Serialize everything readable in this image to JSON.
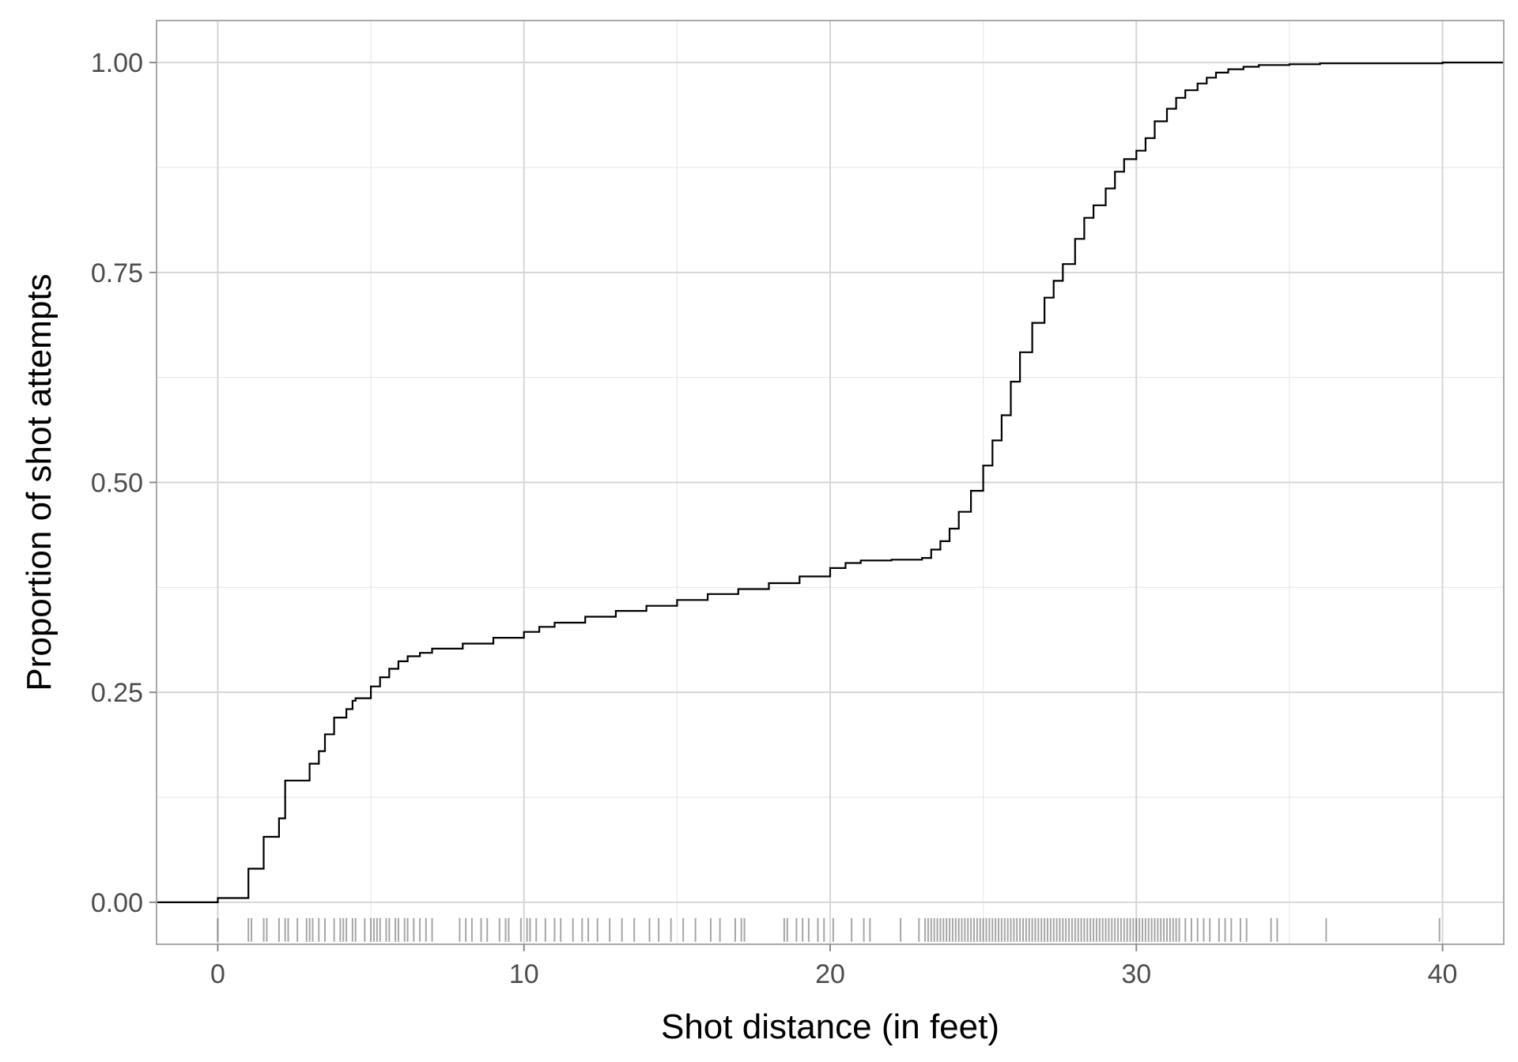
{
  "chart_data": {
    "type": "line",
    "subtype": "ecdf-step-with-rug",
    "title": "",
    "xlabel": "Shot distance (in feet)",
    "ylabel": "Proportion of shot attempts",
    "xlim": [
      -2,
      42
    ],
    "ylim": [
      -0.05,
      1.05
    ],
    "x_ticks": [
      0,
      10,
      20,
      30,
      40
    ],
    "x_tick_labels": [
      "0",
      "10",
      "20",
      "30",
      "40"
    ],
    "y_ticks": [
      0,
      0.25,
      0.5,
      0.75,
      1
    ],
    "y_tick_labels": [
      "0.00",
      "0.25",
      "0.50",
      "0.75",
      "1.00"
    ],
    "grid": true,
    "legend": "none",
    "colors": {
      "line": "#000000",
      "rug": "#000000",
      "grid_major": "#d6d6d6",
      "grid_minor": "#e9e9e9",
      "border": "#a9a9a9"
    },
    "ecdf": {
      "x": [
        -2,
        0,
        1,
        1.5,
        2,
        2.2,
        3,
        3.3,
        3.5,
        3.8,
        4.2,
        4.4,
        4.5,
        5,
        5.3,
        5.6,
        5.9,
        6.2,
        6.6,
        7,
        8,
        9,
        10,
        10.5,
        11,
        12,
        13,
        14,
        15,
        16,
        17,
        18,
        19,
        20,
        20.5,
        21,
        22,
        23,
        23.3,
        23.6,
        23.9,
        24.2,
        24.6,
        25,
        25.3,
        25.6,
        25.9,
        26.2,
        26.6,
        27,
        27.3,
        27.6,
        28,
        28.3,
        28.6,
        29,
        29.3,
        29.6,
        30,
        30.3,
        30.6,
        31,
        31.3,
        31.6,
        32,
        32.3,
        32.6,
        33,
        33.5,
        34,
        35,
        36,
        40,
        42
      ],
      "y": [
        0,
        0.005,
        0.04,
        0.078,
        0.1,
        0.145,
        0.165,
        0.18,
        0.2,
        0.22,
        0.23,
        0.24,
        0.243,
        0.257,
        0.268,
        0.278,
        0.287,
        0.293,
        0.297,
        0.302,
        0.308,
        0.315,
        0.322,
        0.328,
        0.333,
        0.34,
        0.347,
        0.353,
        0.36,
        0.367,
        0.373,
        0.38,
        0.388,
        0.398,
        0.404,
        0.407,
        0.408,
        0.41,
        0.42,
        0.43,
        0.445,
        0.465,
        0.49,
        0.52,
        0.55,
        0.58,
        0.62,
        0.655,
        0.69,
        0.72,
        0.74,
        0.76,
        0.79,
        0.815,
        0.83,
        0.85,
        0.87,
        0.885,
        0.895,
        0.91,
        0.93,
        0.945,
        0.958,
        0.967,
        0.975,
        0.982,
        0.988,
        0.992,
        0.995,
        0.997,
        0.998,
        0.999,
        1.0,
        1.0
      ]
    },
    "rug": [
      0,
      1,
      1.1,
      1.5,
      1.6,
      2,
      2.2,
      2.3,
      2.6,
      2.9,
      3,
      3.1,
      3.3,
      3.5,
      3.8,
      4,
      4.1,
      4.2,
      4.4,
      4.5,
      4.8,
      5,
      5.1,
      5.2,
      5.3,
      5.5,
      5.6,
      5.8,
      5.9,
      6.1,
      6.2,
      6.4,
      6.6,
      6.8,
      7,
      7.9,
      8.1,
      8.3,
      8.6,
      8.8,
      9.2,
      9.4,
      9.5,
      9.9,
      10.1,
      10.2,
      10.4,
      10.7,
      11,
      11.2,
      11.6,
      11.9,
      12.1,
      12.4,
      12.8,
      13.2,
      13.6,
      14.1,
      14.4,
      14.8,
      15.2,
      15.6,
      16.1,
      16.4,
      16.9,
      17.1,
      17.2,
      18.5,
      18.6,
      18.9,
      19.1,
      19.3,
      19.6,
      19.8,
      20.1,
      20.7,
      21.1,
      21.3,
      22.3,
      22.9,
      23.1,
      23.2,
      23.3,
      23.4,
      23.5,
      23.6,
      23.7,
      23.8,
      23.9,
      24.0,
      24.1,
      24.2,
      24.3,
      24.4,
      24.5,
      24.6,
      24.7,
      24.8,
      24.9,
      25.0,
      25.1,
      25.2,
      25.3,
      25.4,
      25.5,
      25.6,
      25.7,
      25.8,
      25.9,
      26.0,
      26.1,
      26.2,
      26.3,
      26.4,
      26.5,
      26.6,
      26.7,
      26.8,
      26.9,
      27.0,
      27.1,
      27.2,
      27.3,
      27.4,
      27.5,
      27.6,
      27.7,
      27.8,
      27.9,
      28.0,
      28.1,
      28.2,
      28.3,
      28.4,
      28.5,
      28.6,
      28.7,
      28.8,
      28.9,
      29.0,
      29.1,
      29.2,
      29.3,
      29.4,
      29.5,
      29.6,
      29.7,
      29.8,
      29.9,
      30.0,
      30.1,
      30.2,
      30.3,
      30.4,
      30.5,
      30.6,
      30.7,
      30.8,
      30.9,
      31.0,
      31.1,
      31.2,
      31.3,
      31.4,
      31.6,
      31.8,
      32.0,
      32.2,
      32.4,
      32.7,
      32.9,
      33.1,
      33.4,
      33.6,
      34.4,
      34.6,
      36.2,
      39.9
    ]
  }
}
